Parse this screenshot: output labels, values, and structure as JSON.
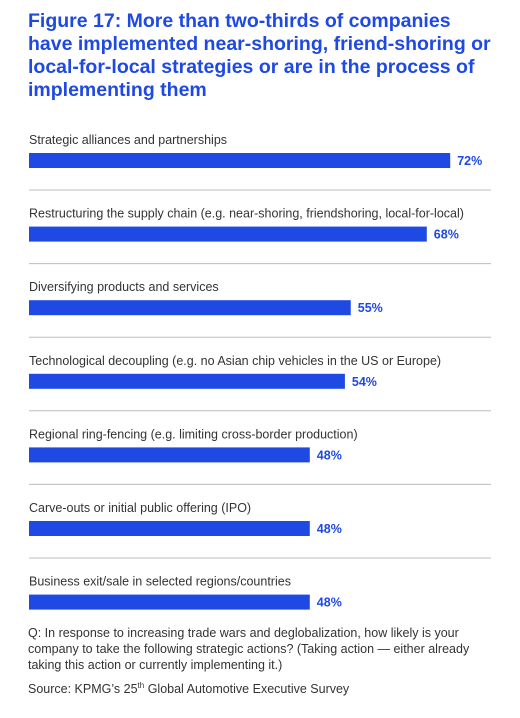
{
  "title": "Figure 17: More than two-thirds of companies have implemented near-shoring, friend-shoring or local-for-local strategies or are in the process of implementing them",
  "accent_color": "#1e49e2",
  "divider_color": "#bdbdbd",
  "chart_data": {
    "type": "bar",
    "orientation": "horizontal",
    "categories": [
      "Strategic alliances and partnerships",
      "Restructuring the supply chain (e.g. near-shoring, friendshoring, local-for-local)",
      "Diversifying products and services",
      "Technological decoupling (e.g. no Asian chip vehicles in the US or Europe)",
      "Regional ring-fencing (e.g. limiting cross-border production)",
      "Carve-outs or initial public offering (IPO)",
      "Business exit/sale in selected regions/countries"
    ],
    "values": [
      72,
      68,
      55,
      54,
      48,
      48,
      48
    ],
    "value_labels": [
      "72%",
      "68%",
      "55%",
      "54%",
      "48%",
      "48%",
      "48%"
    ],
    "unit": "%",
    "xlim": [
      0,
      100
    ],
    "grid": false
  },
  "footnote": "Q: In response to increasing trade wars and deglobalization, how likely is your company to take the following strategic actions? (Taking action — either already taking this action or currently implementing it.)",
  "source": {
    "prefix": "Source: KPMG’s 25",
    "superscript": "th",
    "suffix": " Global Automotive Executive Survey"
  }
}
